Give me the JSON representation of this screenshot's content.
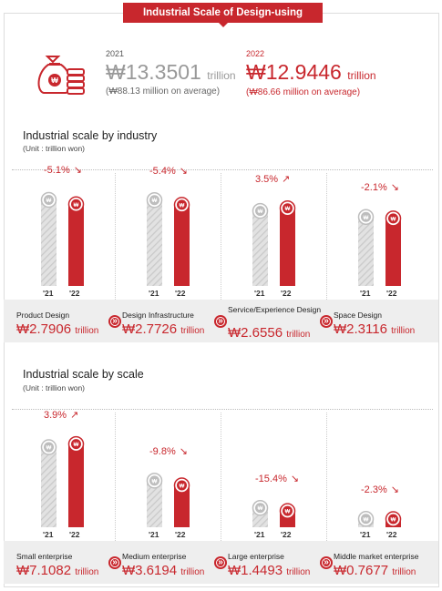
{
  "title": "Industrial Scale of Design-using Companies",
  "summary": {
    "y2021": {
      "year": "2021",
      "value": "₩13.3501",
      "unit": "trillion",
      "avg": "(₩88.13 million on average)"
    },
    "y2022": {
      "year": "2022",
      "value": "₩12.9446",
      "unit": "trillion",
      "avg": "(₩86.66 million on average)"
    }
  },
  "colors": {
    "accent": "#c8272d",
    "prev_bar": "#d8d8d8",
    "band": "#eeeeee"
  },
  "icons": {
    "summary": "money-bag-coins-icon",
    "coin": "won-coin-icon",
    "step": "double-chevron-right-icon",
    "trend_up": "arrow-up-right-icon",
    "trend_down": "arrow-down-right-icon"
  },
  "chart_data": [
    {
      "type": "bar",
      "title": "Industrial scale by industry",
      "unit_label": "(Unit : trillion won)",
      "series": [
        {
          "name": "'21"
        },
        {
          "name": "'22"
        }
      ],
      "categories": [
        {
          "name": "Product Design",
          "v21": 2.9392,
          "v22": 2.7906,
          "change": "-5.1%",
          "dir": "down",
          "label": "₩2.7906",
          "unit": "trillion"
        },
        {
          "name": "Design Infrastructure",
          "v21": 2.9309,
          "v22": 2.7726,
          "change": "-5.4%",
          "dir": "down",
          "label": "₩2.7726",
          "unit": "trillion"
        },
        {
          "name": "Service/Experience Design",
          "v21": 2.5658,
          "v22": 2.6556,
          "change": "3.5%",
          "dir": "up",
          "label": "₩2.6556",
          "unit": "trillion"
        },
        {
          "name": "Space Design",
          "v21": 2.3609,
          "v22": 2.3116,
          "change": "-2.1%",
          "dir": "down",
          "label": "₩2.3116",
          "unit": "trillion"
        }
      ]
    },
    {
      "type": "bar",
      "title": "Industrial scale by scale",
      "unit_label": "(Unit : trillion won)",
      "series": [
        {
          "name": "'21"
        },
        {
          "name": "'22"
        }
      ],
      "categories": [
        {
          "name": "Small enterprise",
          "v21": 6.8414,
          "v22": 7.1082,
          "change": "3.9%",
          "dir": "up",
          "label": "₩7.1082",
          "unit": "trillion"
        },
        {
          "name": "Medium enterprise",
          "v21": 4.0126,
          "v22": 3.6194,
          "change": "-9.8%",
          "dir": "down",
          "label": "₩3.6194",
          "unit": "trillion"
        },
        {
          "name": "Large enterprise",
          "v21": 1.713,
          "v22": 1.4493,
          "change": "-15.4%",
          "dir": "down",
          "label": "₩1.4493",
          "unit": "trillion"
        },
        {
          "name": "Middle market enterprise",
          "v21": 0.7858,
          "v22": 0.7677,
          "change": "-2.3%",
          "dir": "down",
          "label": "₩0.7677",
          "unit": "trillion"
        }
      ]
    }
  ]
}
